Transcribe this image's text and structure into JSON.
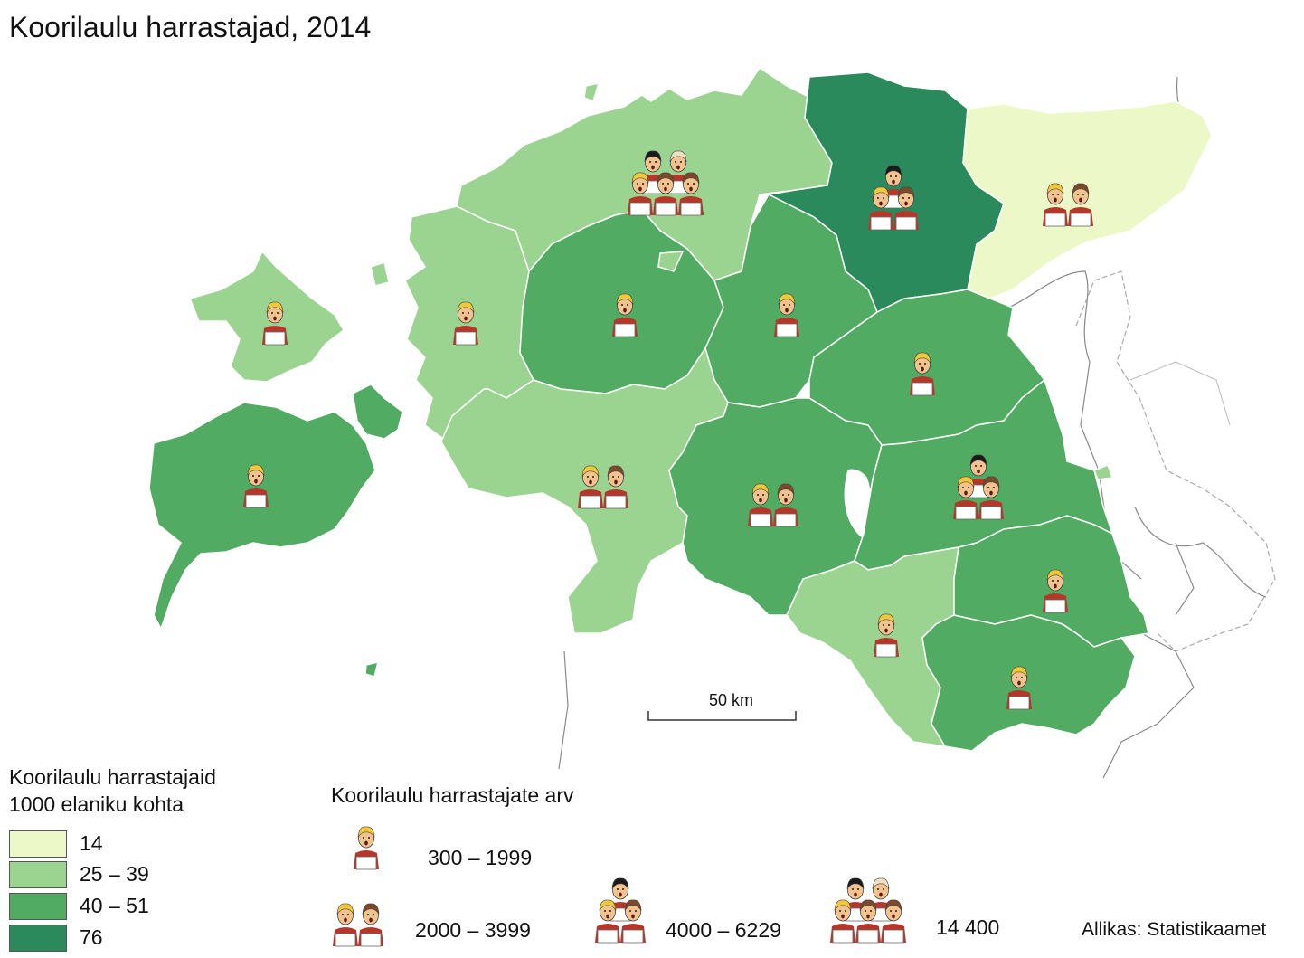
{
  "title": "Koorilaulu harrastajad, 2014",
  "legend": {
    "title_line1": "Koorilaulu harrastajaid",
    "title_line2": "1000 elaniku kohta",
    "classes": [
      {
        "label": "14",
        "color": "#ecf8c8"
      },
      {
        "label": "25 – 39",
        "color": "#9bd390"
      },
      {
        "label": "40 – 51",
        "color": "#52ab62"
      },
      {
        "label": "76",
        "color": "#2a8a5b"
      }
    ]
  },
  "count_legend": {
    "title": "Koorilaulu harrastajate arv",
    "items": [
      {
        "label": "300 – 1999",
        "singers": 1
      },
      {
        "label": "2000 – 3999",
        "singers": 2
      },
      {
        "label": "4000 – 6229",
        "singers": 3
      },
      {
        "label": "14 400",
        "singers": 5
      }
    ]
  },
  "scale": {
    "label": "50 km"
  },
  "source": "Allikas: Statistikaamet",
  "regions": [
    {
      "class": 1,
      "singers": 5
    },
    {
      "class": 3,
      "singers": 3
    },
    {
      "class": 0,
      "singers": 2
    },
    {
      "class": 1,
      "singers": 1
    },
    {
      "class": 1,
      "singers": 1
    },
    {
      "class": 2,
      "singers": 1
    },
    {
      "class": 2,
      "singers": 1
    },
    {
      "class": 2,
      "singers": 1
    },
    {
      "class": 2,
      "singers": 1
    },
    {
      "class": 1,
      "singers": 2
    },
    {
      "class": 2,
      "singers": 2
    },
    {
      "class": 2,
      "singers": 3
    },
    {
      "class": 2,
      "singers": 1
    },
    {
      "class": 1,
      "singers": 1
    },
    {
      "class": 2,
      "singers": 1
    }
  ],
  "colors": {
    "border": "#ffffff",
    "neighbor_line": "#8a8a8a",
    "skin": "#f3c38f",
    "robe": "#b6372a"
  }
}
